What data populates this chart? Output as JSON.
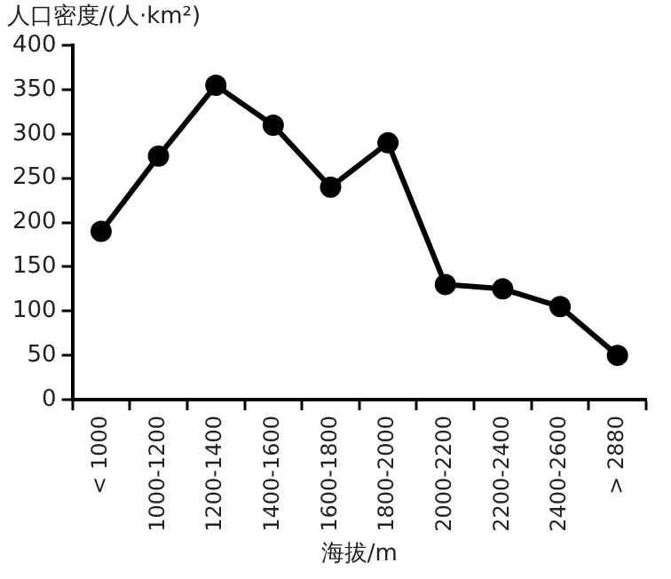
{
  "chart_data": {
    "type": "line",
    "ylabel": "人口密度/(人·km²)",
    "xlabel": "海拔/m",
    "categories": [
      "< 1000",
      "1000-1200",
      "1200-1400",
      "1400-1600",
      "1600-1800",
      "1800-2000",
      "2000-2200",
      "2200-2400",
      "2400-2600",
      "> 2880"
    ],
    "series": [
      {
        "color": "#000000",
        "values": [
          190,
          275,
          355,
          310,
          240,
          290,
          130,
          125,
          105,
          50
        ]
      }
    ],
    "ylim": [
      0,
      400
    ],
    "yticks": [
      0,
      50,
      100,
      150,
      200,
      250,
      300,
      350,
      400
    ],
    "grid": false,
    "legend": false,
    "marker": "circle",
    "line_style": "solid"
  }
}
